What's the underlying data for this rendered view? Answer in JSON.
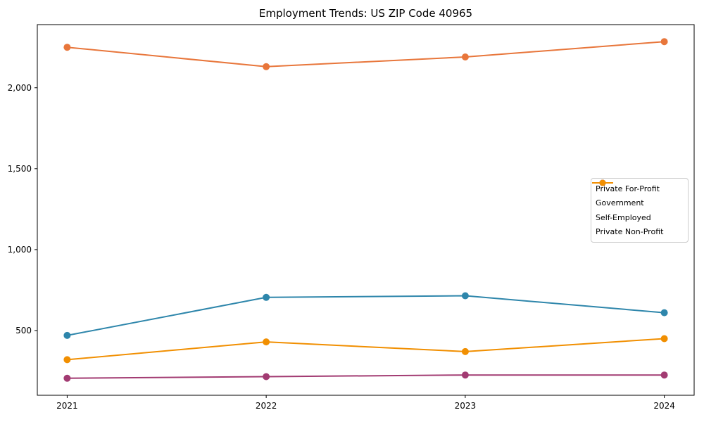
{
  "chart_data": {
    "type": "line",
    "title": "Employment Trends: US ZIP Code 40965",
    "x": [
      2021,
      2022,
      2023,
      2024
    ],
    "xtick_labels": [
      "2021",
      "2022",
      "2023",
      "2024"
    ],
    "yticks": [
      500,
      1000,
      1500,
      2000
    ],
    "ytick_labels": [
      "500",
      "1,000",
      "1,500",
      "2,000"
    ],
    "xlim": [
      2020.85,
      2024.15
    ],
    "ylim": [
      100,
      2390
    ],
    "grid": false,
    "legend_position": "center right",
    "marker": "circle",
    "series": [
      {
        "name": "Private For-Profit",
        "color": "#E8763B",
        "values": [
          2250,
          2130,
          2190,
          2285
        ]
      },
      {
        "name": "Government",
        "color": "#2E86AB",
        "values": [
          470,
          705,
          715,
          610
        ]
      },
      {
        "name": "Self-Employed",
        "color": "#A23B72",
        "values": [
          205,
          215,
          225,
          225
        ]
      },
      {
        "name": "Private Non-Profit",
        "color": "#F18F01",
        "values": [
          320,
          430,
          370,
          450
        ]
      }
    ],
    "axis_color": "#000000",
    "background_color": "#ffffff"
  }
}
